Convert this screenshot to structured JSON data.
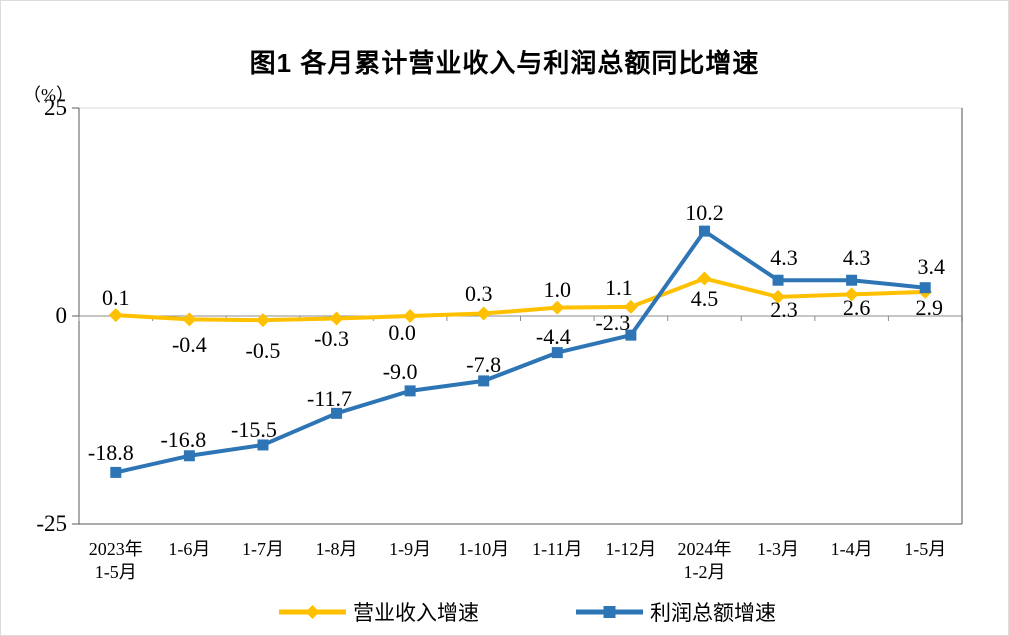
{
  "title": "图1 各月累计营业收入与利润总额同比增速",
  "chart_data": {
    "type": "line",
    "title": "图1 各月累计营业收入与利润总额同比增速",
    "y_axis": {
      "unit": "（%）",
      "ticks": [
        25,
        0,
        -25
      ],
      "ylim": [
        -25,
        25
      ]
    },
    "categories": [
      [
        "2023年",
        "1-5月"
      ],
      [
        "1-6月"
      ],
      [
        "1-7月"
      ],
      [
        "1-8月"
      ],
      [
        "1-9月"
      ],
      [
        "1-10月"
      ],
      [
        "1-11月"
      ],
      [
        "1-12月"
      ],
      [
        "2024年",
        "1-2月"
      ],
      [
        "1-3月"
      ],
      [
        "1-4月"
      ],
      [
        "1-5月"
      ]
    ],
    "grid": "zero-line-only",
    "legend_position": "bottom",
    "series": [
      {
        "name": "营业收入增速",
        "color": "#FFC000",
        "marker": "diamond",
        "values": [
          0.1,
          -0.4,
          -0.5,
          -0.3,
          0.0,
          0.3,
          1.0,
          1.1,
          4.5,
          2.3,
          2.6,
          2.9
        ],
        "labels": [
          "0.1",
          "-0.4",
          "-0.5",
          "-0.3",
          "0.0",
          "0.3",
          "1.0",
          "1.1",
          "4.5",
          "2.3",
          "2.6",
          "2.9"
        ],
        "label_offsets": [
          [
            0,
            -17
          ],
          [
            0,
            26
          ],
          [
            0,
            31
          ],
          [
            -5,
            21
          ],
          [
            -8,
            17
          ],
          [
            -5,
            -20
          ],
          [
            0,
            -18
          ],
          [
            -12,
            -19
          ],
          [
            0,
            20
          ],
          [
            6,
            13
          ],
          [
            5,
            14
          ],
          [
            4,
            16
          ]
        ]
      },
      {
        "name": "利润总额增速",
        "color": "#2E75B6",
        "marker": "square",
        "values": [
          -18.8,
          -16.8,
          -15.5,
          -11.7,
          -9.0,
          -7.8,
          -4.4,
          -2.3,
          10.2,
          4.3,
          4.3,
          3.4
        ],
        "labels": [
          "-18.8",
          "-16.8",
          "-15.5",
          "-11.7",
          "-9.0",
          "-7.8",
          "-4.4",
          "-2.3",
          "10.2",
          "4.3",
          "4.3",
          "3.4"
        ],
        "label_offsets": [
          [
            -5,
            -19
          ],
          [
            -6,
            -16
          ],
          [
            -9,
            -15
          ],
          [
            -7,
            -14
          ],
          [
            -10,
            -19
          ],
          [
            0,
            -16
          ],
          [
            -4,
            -16
          ],
          [
            -18,
            -12
          ],
          [
            0,
            -18
          ],
          [
            6,
            -22
          ],
          [
            5,
            -22
          ],
          [
            6,
            -21
          ]
        ]
      }
    ],
    "axis_colors": {
      "left": "#595959",
      "bottom": "#595959",
      "top": "#d9d9d9",
      "right": "#a6a6a6",
      "zero_line": "#8c8c8c"
    }
  }
}
